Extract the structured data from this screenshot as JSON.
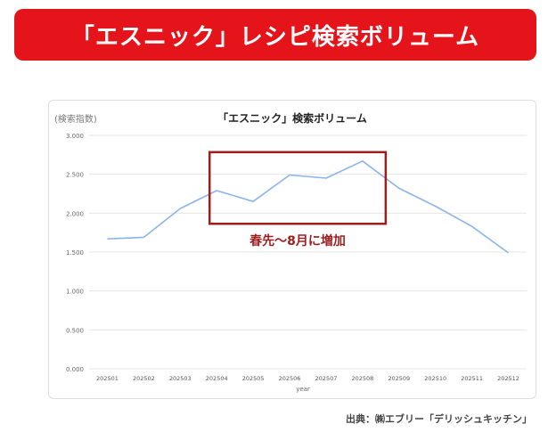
{
  "banner": {
    "title": "「エスニック」レシピ検索ボリューム"
  },
  "source": "出典：㈱エブリー「デリッシュキッチン」",
  "colors": {
    "banner": "#e4141a",
    "line": "#8cb4e8",
    "highlight": "#9e1d1d"
  },
  "chart_data": {
    "type": "line",
    "title": "「エスニック」検索ボリューム",
    "ylabel": "(検索指数)",
    "xlabel": "year",
    "categories": [
      "202501",
      "202502",
      "202503",
      "202504",
      "202505",
      "202506",
      "202507",
      "202508",
      "202509",
      "202510",
      "202511",
      "202512"
    ],
    "series": [
      {
        "values": [
          1.67,
          1.69,
          2.06,
          2.29,
          2.15,
          2.49,
          2.45,
          2.67,
          2.32,
          2.09,
          1.83,
          1.49
        ]
      }
    ],
    "ylim": [
      0,
      3
    ],
    "yticks": [
      {
        "value": 0,
        "label": "0.000"
      },
      {
        "value": 0.5,
        "label": "0.500"
      },
      {
        "value": 1,
        "label": "1.000"
      },
      {
        "value": 1.5,
        "label": "1.500"
      },
      {
        "value": 2,
        "label": "2.000"
      },
      {
        "value": 2.5,
        "label": "2.500"
      },
      {
        "value": 3,
        "label": "3.000"
      }
    ],
    "grid": true,
    "annotation": {
      "text": "春先～8月に増加",
      "range": [
        "202504",
        "202508"
      ]
    }
  }
}
